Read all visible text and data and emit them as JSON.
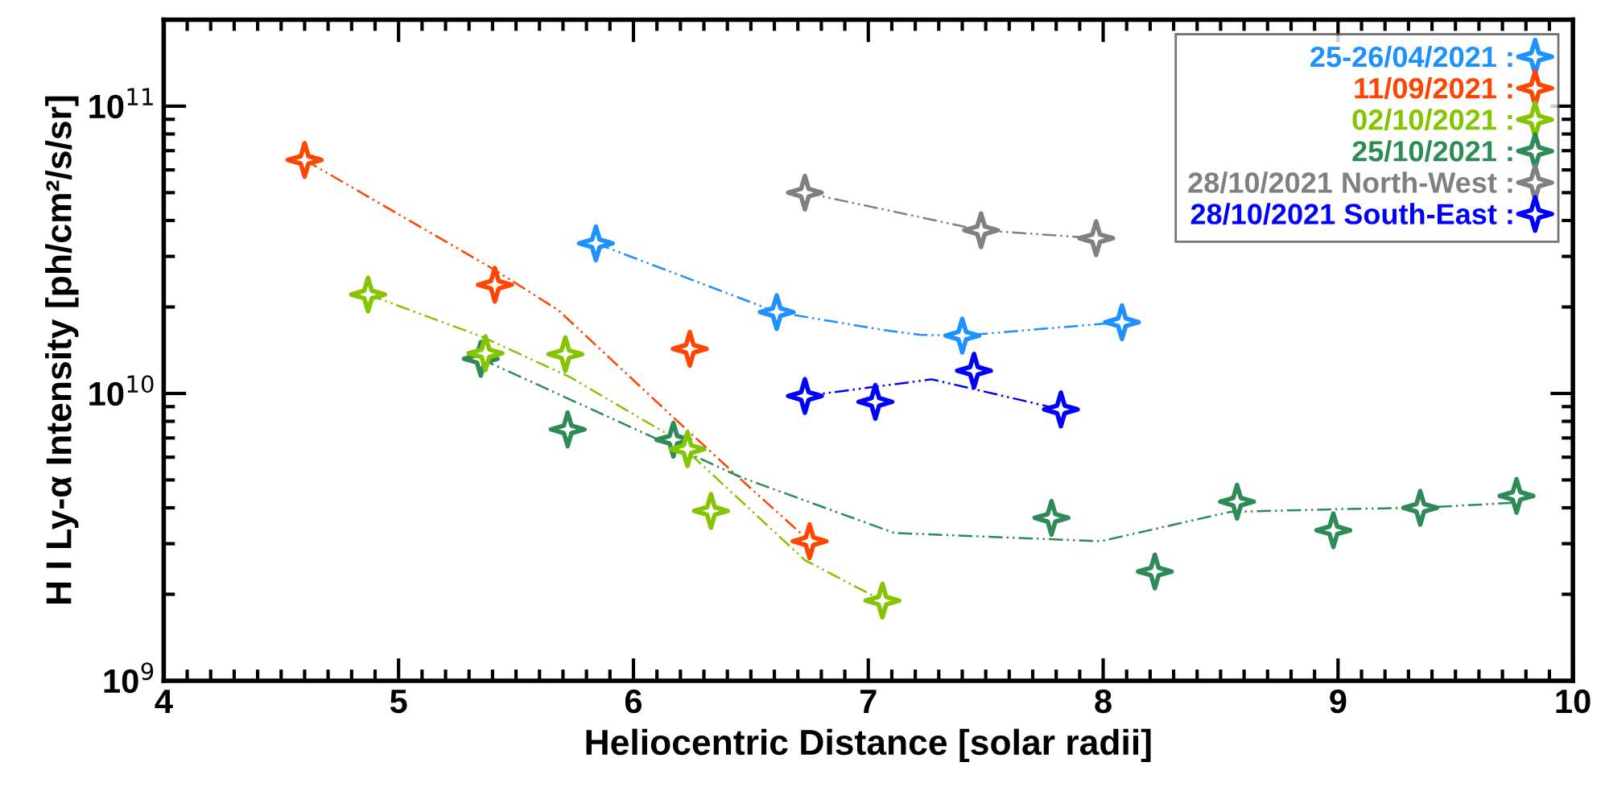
{
  "chart_data": {
    "type": "scatter",
    "xlabel": "Heliocentric Distance [solar radii]",
    "ylabel": "H I Ly-α Intensity [ph/cm²/s/sr]",
    "log": "y",
    "xlim": [
      4,
      10
    ],
    "xticks": [
      4,
      5,
      6,
      7,
      8,
      9,
      10
    ],
    "ylim": [
      1000000000.0,
      200000000000.0
    ],
    "yticks": [
      {
        "value": 1000000000.0,
        "label": "10$^{9}$"
      },
      {
        "value": 10000000000.0,
        "label": "10$^{10}$"
      },
      {
        "value": 100000000000.0,
        "label": "10$^{11}$"
      }
    ],
    "grid": false,
    "legend": "top right",
    "marker": "star",
    "series": [
      {
        "name": "25-26/04/2021 :",
        "color": "#1e90ff",
        "x": [
          5.84,
          6.61,
          7.4,
          8.08
        ],
        "values": [
          33300000000.0,
          19200000000.0,
          15900000000.0,
          17700000000.0
        ]
      },
      {
        "name": "11/09/2021 :",
        "color": "#ff4500",
        "x": [
          4.6,
          5.41,
          6.24,
          6.75
        ],
        "values": [
          65000000000.0,
          23900000000.0,
          14300000000.0,
          3060000000.0
        ]
      },
      {
        "name": "02/10/2021 :",
        "color": "#84c400",
        "x": [
          4.87,
          5.37,
          5.71,
          6.23,
          6.33,
          7.06
        ],
        "values": [
          22100000000.0,
          13800000000.0,
          13700000000.0,
          6400000000.0,
          3900000000.0,
          1900000000.0
        ]
      },
      {
        "name": "25/10/2021 :",
        "color": "#2e8b57",
        "x": [
          5.35,
          5.72,
          6.17,
          7.78,
          8.22,
          8.57,
          8.98,
          9.35,
          9.76
        ],
        "values": [
          13200000000.0,
          7500000000.0,
          6900000000.0,
          3690000000.0,
          2400000000.0,
          4200000000.0,
          3340000000.0,
          4000000000.0,
          4400000000.0
        ]
      },
      {
        "name": "28/10/2021 North-West :",
        "color": "#808080",
        "x": [
          6.73,
          7.48,
          7.97
        ],
        "values": [
          50000000000.0,
          37000000000.0,
          34700000000.0
        ]
      },
      {
        "name": "28/10/2021 South-East :",
        "color": "#0000ff",
        "x": [
          6.73,
          7.03,
          7.45,
          7.82
        ],
        "values": [
          9800000000.0,
          9350000000.0,
          12000000000.0,
          8800000000.0
        ]
      },
      {
        "type": "line",
        "color": "#1e90ff",
        "marker": "none",
        "line_style": "dashed",
        "x": [
          5.84,
          6.61,
          7.07,
          7.22,
          7.4,
          8.08
        ],
        "values": [
          33300000000.0,
          19200000000.0,
          16600000000.0,
          16000000000.0,
          15900000000.0,
          17700000000.0
        ]
      },
      {
        "type": "line",
        "color": "#ff4500",
        "marker": "none",
        "line_style": "dashed",
        "x": [
          4.6,
          5.41,
          5.68,
          6.16,
          6.46,
          6.75
        ],
        "values": [
          65000000000.0,
          26900000000.0,
          19500000000.0,
          8400000000.0,
          5000000000.0,
          3060000000.0
        ]
      },
      {
        "type": "line",
        "color": "#84c400",
        "marker": "none",
        "line_style": "dashed",
        "x": [
          4.87,
          5.36,
          5.73,
          6.16,
          6.73,
          7.06
        ],
        "values": [
          22100000000.0,
          15700000000.0,
          11400000000.0,
          7100000000.0,
          2630000000.0,
          1900000000.0
        ]
      },
      {
        "type": "line",
        "color": "#2e8b57",
        "marker": "none",
        "line_style": "dashed",
        "x": [
          5.35,
          6.46,
          7.11,
          7.99,
          8.54,
          9.02,
          9.35,
          9.76
        ],
        "values": [
          13200000000.0,
          5100000000.0,
          3270000000.0,
          3060000000.0,
          3870000000.0,
          3960000000.0,
          4000000000.0,
          4170000000.0
        ]
      },
      {
        "type": "line",
        "color": "#808080",
        "marker": "none",
        "line_style": "dashed",
        "x": [
          6.73,
          7.48,
          7.97
        ],
        "values": [
          50000000000.0,
          37000000000.0,
          34700000000.0
        ]
      },
      {
        "type": "line",
        "color": "#0000ff",
        "marker": "none",
        "line_style": "dashed",
        "x": [
          6.73,
          7.27,
          7.82
        ],
        "values": [
          9800000000.0,
          11200000000.0,
          8800000000.0
        ]
      }
    ]
  }
}
